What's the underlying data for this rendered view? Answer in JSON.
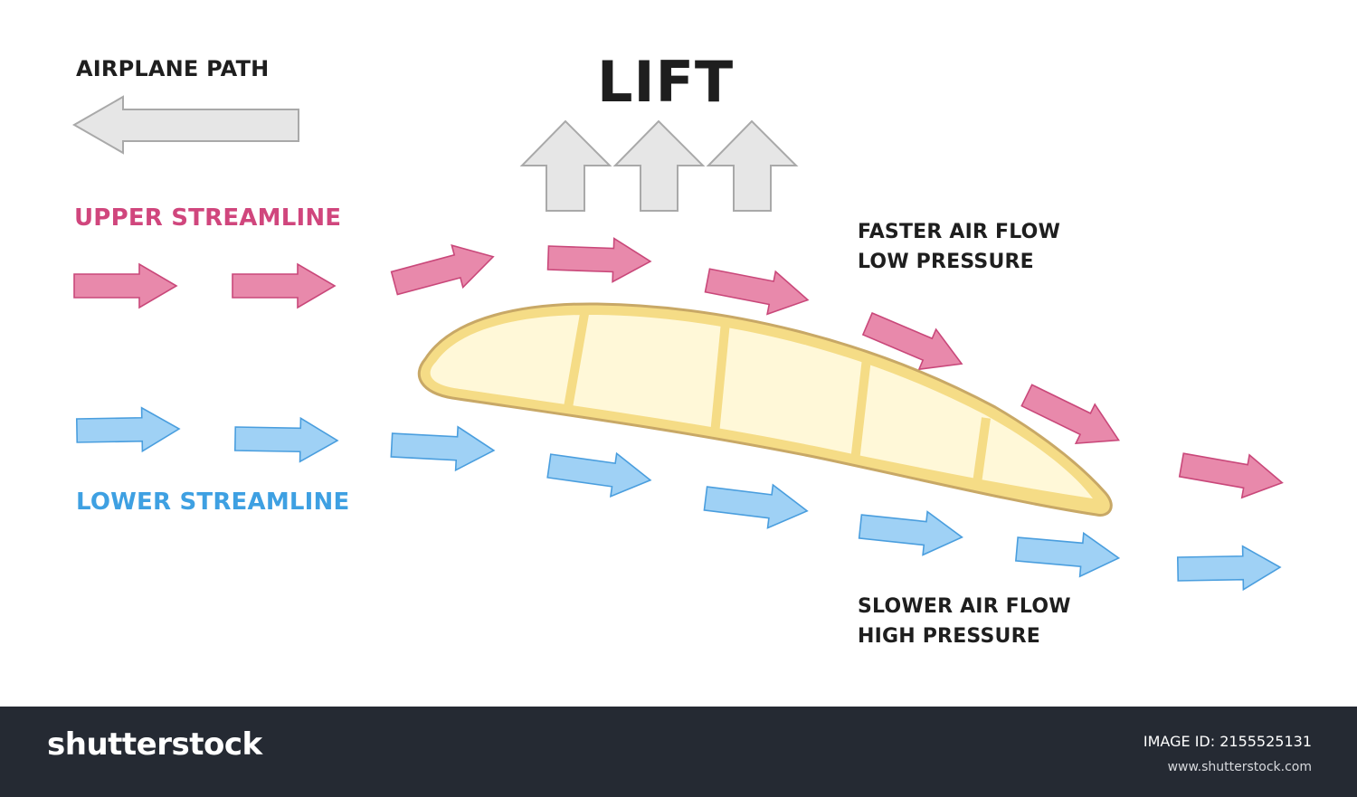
{
  "labels": {
    "airplane_path": "AIRPLANE PATH",
    "lift": "LIFT",
    "upper_streamline": "UPPER STREAMLINE",
    "lower_streamline": "LOWER STREAMLINE",
    "faster_line1": "FASTER AIR FLOW",
    "faster_line2": "LOW PRESSURE",
    "slower_line1": "SLOWER AIR FLOW",
    "slower_line2": "HIGH PRESSURE"
  },
  "footer": {
    "brand": "shutterstock",
    "image_id_label": "IMAGE ID: 2155525131",
    "url": "www.shutterstock.com"
  },
  "colors": {
    "upper_fill": "#e889ab",
    "upper_stroke": "#c9487a",
    "upper_text": "#d0467d",
    "lower_fill": "#9fd1f5",
    "lower_stroke": "#4a9ede",
    "lower_text": "#3ea0e2",
    "gray_fill": "#e6e6e6",
    "gray_stroke": "#a9a9a9",
    "wing_fill": "#fff8d8",
    "wing_rib": "#f5dc86",
    "wing_outline": "#c8a866",
    "footer_bg": "#252a33"
  },
  "icons": {
    "airplane_path_arrow": "left-arrow-icon",
    "lift_arrows": "up-arrow-icon",
    "upper_flow": "right-arrow-icon",
    "lower_flow": "right-arrow-icon"
  },
  "counts": {
    "lift_arrows": 3,
    "upper_flow_arrows": 8,
    "lower_flow_arrows": 8
  }
}
